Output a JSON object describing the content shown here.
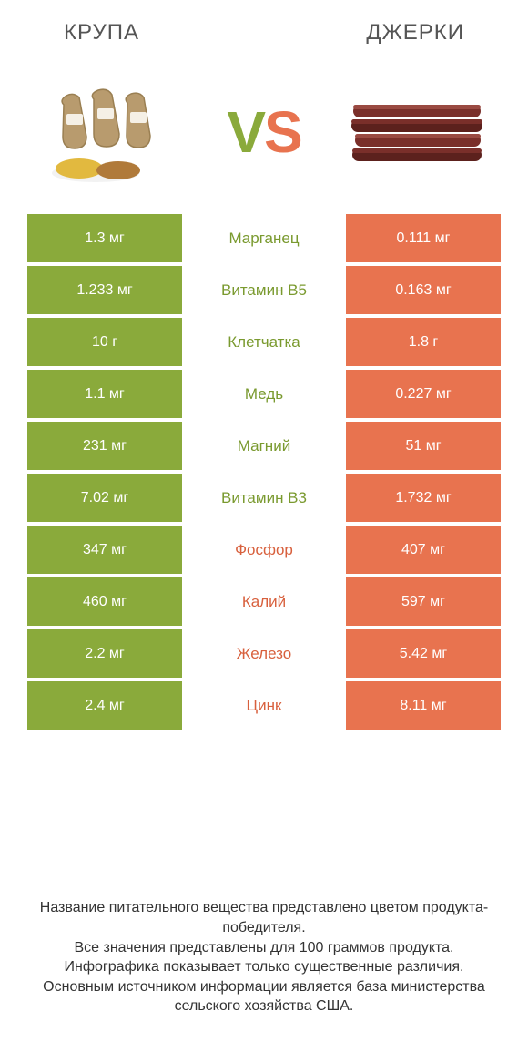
{
  "header": {
    "left_title": "КРУПА",
    "right_title": "ДЖЕРКИ"
  },
  "vs": {
    "v": "V",
    "s": "S"
  },
  "colors": {
    "green": "#8aaa3b",
    "orange": "#e8734f",
    "green_text": "#7a9a2f",
    "orange_text": "#d8603d",
    "title_gray": "#555555",
    "footer_gray": "#333333",
    "row_gap_bg": "#ffffff"
  },
  "table": {
    "rows": [
      {
        "left": "1.3 мг",
        "label": "Марганец",
        "right": "0.111 мг",
        "winner": "left"
      },
      {
        "left": "1.233 мг",
        "label": "Витамин B5",
        "right": "0.163 мг",
        "winner": "left"
      },
      {
        "left": "10 г",
        "label": "Клетчатка",
        "right": "1.8 г",
        "winner": "left"
      },
      {
        "left": "1.1 мг",
        "label": "Медь",
        "right": "0.227 мг",
        "winner": "left"
      },
      {
        "left": "231 мг",
        "label": "Магний",
        "right": "51 мг",
        "winner": "left"
      },
      {
        "left": "7.02 мг",
        "label": "Витамин B3",
        "right": "1.732 мг",
        "winner": "left"
      },
      {
        "left": "347 мг",
        "label": "Фосфор",
        "right": "407 мг",
        "winner": "right"
      },
      {
        "left": "460 мг",
        "label": "Калий",
        "right": "597 мг",
        "winner": "right"
      },
      {
        "left": "2.2 мг",
        "label": "Железо",
        "right": "5.42 мг",
        "winner": "right"
      },
      {
        "left": "2.4 мг",
        "label": "Цинк",
        "right": "8.11 мг",
        "winner": "right"
      }
    ]
  },
  "footer": {
    "line1": "Название питательного вещества представлено цветом продукта-победителя.",
    "line2": "Все значения представлены для 100 граммов продукта.",
    "line3": "Инфографика показывает только существенные различия.",
    "line4": "Основным источником информации является база министерства сельского хозяйства США."
  },
  "illustrations": {
    "grain": {
      "sack_fill": "#b89b6e",
      "sack_stroke": "#9a7f52",
      "label_fill": "#f5f0e6",
      "grain_yellow": "#e2b93f",
      "grain_brown": "#b07a3a",
      "plate_fill": "#f2f2f2"
    },
    "jerky": {
      "stick_fill": "#7a2f2a",
      "stick_dark": "#5c211d",
      "highlight": "#9a4a42"
    }
  }
}
